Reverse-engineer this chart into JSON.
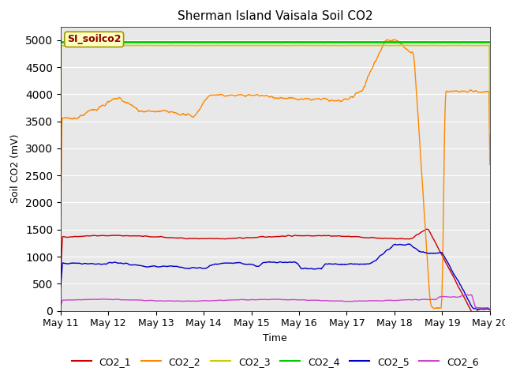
{
  "title": "Sherman Island Vaisala Soil CO2",
  "xlabel": "Time",
  "ylabel": "Soil CO2 (mV)",
  "annotation_text": "SI_soilco2",
  "annotation_color": "#8B0000",
  "annotation_bg": "#FFFFC0",
  "annotation_border": "#999900",
  "ylim": [
    0,
    5250
  ],
  "yticks": [
    0,
    500,
    1000,
    1500,
    2000,
    2500,
    3000,
    3500,
    4000,
    4500,
    5000
  ],
  "bg_color": "#e8e8e8",
  "series_colors": {
    "CO2_1": "#cc0000",
    "CO2_2": "#ff8800",
    "CO2_3": "#cccc00",
    "CO2_4": "#00cc00",
    "CO2_5": "#0000cc",
    "CO2_6": "#cc44cc"
  },
  "legend_labels": [
    "CO2_1",
    "CO2_2",
    "CO2_3",
    "CO2_4",
    "CO2_5",
    "CO2_6"
  ]
}
